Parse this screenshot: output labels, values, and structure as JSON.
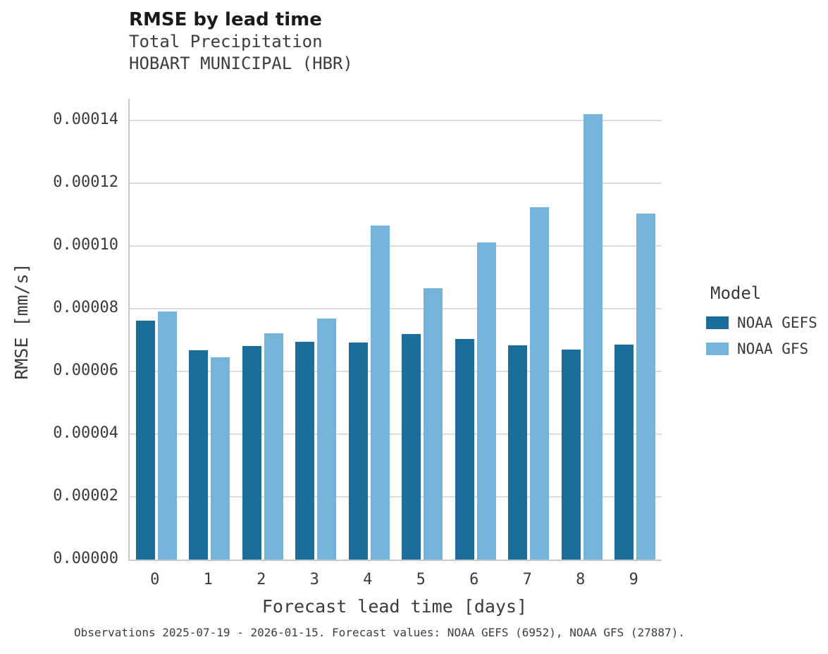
{
  "caption": "Observations 2025-07-19 - 2026-01-15. Forecast values: NOAA GEFS (6952), NOAA GFS (27887).",
  "chart_data": {
    "type": "bar",
    "title": "RMSE by lead time",
    "subtitle": "Total Precipitation",
    "station": "HOBART MUNICIPAL (HBR)",
    "xlabel": "Forecast lead time [days]",
    "ylabel": "RMSE [mm/s]",
    "legend_title": "Model",
    "legend_position": "right",
    "grid": "horizontal",
    "ylim": [
      0,
      0.00014
    ],
    "ytick_step": 2e-05,
    "categories": [
      "0",
      "1",
      "2",
      "3",
      "4",
      "5",
      "6",
      "7",
      "8",
      "9"
    ],
    "series": [
      {
        "name": "NOAA GEFS",
        "color": "#1b6e99",
        "values": [
          7.61e-05,
          6.68e-05,
          6.81e-05,
          6.94e-05,
          6.92e-05,
          7.19e-05,
          7.03e-05,
          6.84e-05,
          6.7e-05,
          6.86e-05
        ]
      },
      {
        "name": "NOAA GFS",
        "color": "#74b4da",
        "values": [
          7.91e-05,
          6.45e-05,
          7.22e-05,
          7.68e-05,
          0.0001065,
          8.66e-05,
          0.0001012,
          0.0001123,
          0.0001421,
          0.0001104
        ]
      }
    ]
  }
}
